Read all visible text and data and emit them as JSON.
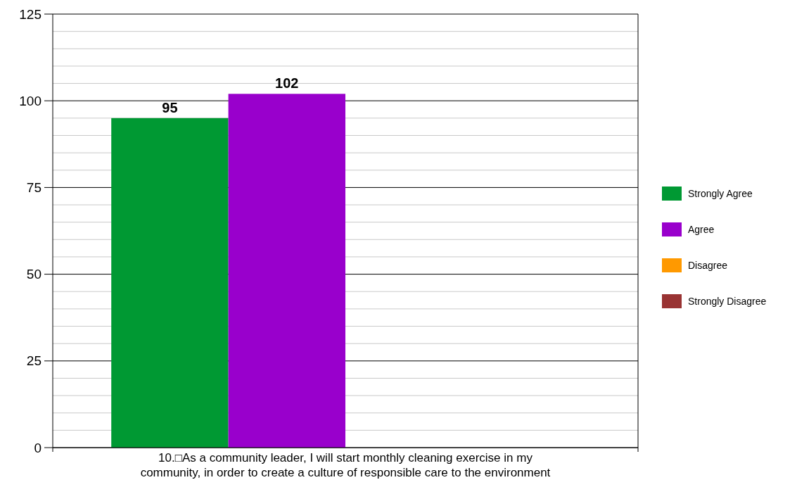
{
  "chart_data": {
    "type": "bar",
    "categories": [
      "10.□As a community leader, I will start monthly cleaning exercise in my community, in order to create a culture of responsible care to the environment"
    ],
    "series": [
      {
        "name": "Strongly Agree",
        "color": "#009933",
        "values": [
          95
        ],
        "value_labels": [
          "95"
        ]
      },
      {
        "name": "Agree",
        "color": "#9900cc",
        "values": [
          102
        ],
        "value_labels": [
          "102"
        ]
      },
      {
        "name": "Disagree",
        "color": "#ff9900",
        "values": [
          0
        ],
        "value_labels": [
          null
        ]
      },
      {
        "name": "Strongly Disagree",
        "color": "#993333",
        "values": [
          0
        ],
        "value_labels": [
          null
        ]
      }
    ],
    "ylim": [
      0,
      125
    ],
    "yticks": [
      0,
      {
        "value": 5,
        "label": null
      },
      {
        "value": 10,
        "label": null
      },
      {
        "value": 15,
        "label": null
      },
      {
        "value": 20,
        "label": null
      },
      25,
      {
        "value": 30,
        "label": null
      },
      {
        "value": 35,
        "label": null
      },
      {
        "value": 40,
        "label": null
      },
      {
        "value": 45,
        "label": null
      },
      50,
      {
        "value": 55,
        "label": null
      },
      {
        "value": 60,
        "label": null
      },
      {
        "value": 65,
        "label": null
      },
      {
        "value": 70,
        "label": null
      },
      75,
      {
        "value": 80,
        "label": null
      },
      {
        "value": 85,
        "label": null
      },
      {
        "value": 90,
        "label": null
      },
      {
        "value": 95,
        "label": null
      },
      100,
      {
        "value": 105,
        "label": null
      },
      {
        "value": 110,
        "label": null
      },
      {
        "value": 115,
        "label": null
      },
      {
        "value": 120,
        "label": null
      },
      125
    ],
    "grid": "y",
    "legend": "right"
  }
}
